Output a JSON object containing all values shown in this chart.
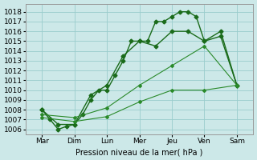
{
  "xlabel": "Pression niveau de la mer( hPa )",
  "background_color": "#cce8e8",
  "grid_color": "#99cccc",
  "days": [
    "Mar",
    "Dim",
    "Lun",
    "Mer",
    "Jeu",
    "Ven",
    "Sam"
  ],
  "x_positions": [
    0,
    1,
    2,
    3,
    4,
    5,
    6
  ],
  "ylim_min": 1005.5,
  "ylim_max": 1018.8,
  "yticks": [
    1006,
    1007,
    1008,
    1009,
    1010,
    1011,
    1012,
    1013,
    1014,
    1015,
    1016,
    1017,
    1018
  ],
  "line1": {
    "x": [
      0.0,
      0.25,
      0.5,
      0.75,
      1.0,
      1.25,
      1.5,
      1.75,
      2.0,
      2.25,
      2.5,
      2.75,
      3.0,
      3.25,
      3.5,
      3.75,
      4.0,
      4.25,
      4.5,
      4.75,
      5.0,
      5.5,
      6.0
    ],
    "y": [
      1008,
      1007,
      1006,
      1006.3,
      1006.5,
      1007.5,
      1009.0,
      1010.0,
      1010.0,
      1011.5,
      1013.0,
      1015.0,
      1015.0,
      1015.0,
      1017.0,
      1017.0,
      1017.5,
      1018.0,
      1018.0,
      1017.5,
      1015.0,
      1016.0,
      1010.5
    ],
    "color": "#1a6b1a",
    "marker": "D",
    "markersize": 2.5,
    "linewidth": 1.0
  },
  "line2": {
    "x": [
      0.0,
      0.5,
      1.0,
      1.5,
      2.0,
      2.5,
      3.0,
      3.5,
      4.0,
      4.5,
      5.0,
      5.5,
      6.0
    ],
    "y": [
      1008,
      1006.5,
      1006.5,
      1009.5,
      1010.5,
      1013.5,
      1015.0,
      1014.5,
      1016.0,
      1016.0,
      1015.0,
      1015.5,
      1010.5
    ],
    "color": "#1a6b1a",
    "marker": "D",
    "markersize": 2.5,
    "linewidth": 1.0
  },
  "line3": {
    "x": [
      0.0,
      1.0,
      2.0,
      3.0,
      4.0,
      5.0,
      6.0
    ],
    "y": [
      1007.5,
      1007.2,
      1008.2,
      1010.5,
      1012.5,
      1014.5,
      1010.5
    ],
    "color": "#2a8a2a",
    "marker": "D",
    "markersize": 2.0,
    "linewidth": 0.8
  },
  "line4": {
    "x": [
      0.0,
      1.0,
      2.0,
      3.0,
      4.0,
      5.0,
      6.0
    ],
    "y": [
      1007.2,
      1006.8,
      1007.3,
      1008.8,
      1010.0,
      1010.0,
      1010.5
    ],
    "color": "#2a8a2a",
    "marker": "D",
    "markersize": 2.0,
    "linewidth": 0.8
  }
}
